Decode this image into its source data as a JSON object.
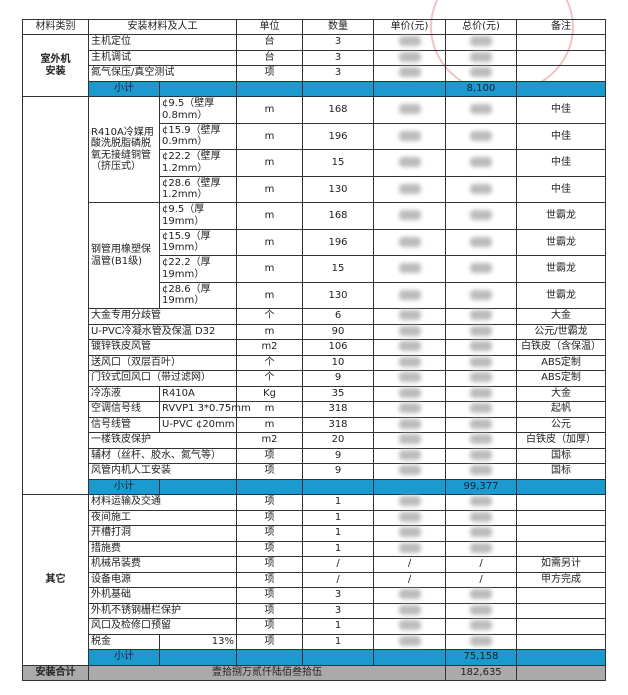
{
  "header": {
    "category": "材料类别",
    "item": "安装材料及人工",
    "unit": "单位",
    "qty": "数量",
    "unit_price": "单价(元)",
    "total": "总价(元)",
    "note": "备注"
  },
  "sections": [
    {
      "category": "室外机\n安装",
      "rows": [
        {
          "name": "主机定位",
          "unit": "台",
          "qty": "3",
          "note": ""
        },
        {
          "name": "主机调试",
          "unit": "台",
          "qty": "3",
          "note": ""
        },
        {
          "name": "氮气保压/真空测试",
          "unit": "项",
          "qty": "3",
          "note": ""
        }
      ],
      "subtotal_label": "小计",
      "subtotal": "8,100"
    },
    {
      "category": "",
      "rows": [
        {
          "group": "R410A冷媒用酸洗脱脂磷脱氧无接缝铜管（挤压式）",
          "group_size": 4,
          "spec": "¢9.5（壁厚0.8mm）",
          "unit": "m",
          "qty": "168",
          "note": "中佳",
          "tall": true
        },
        {
          "spec": "¢15.9（壁厚0.9mm）",
          "unit": "m",
          "qty": "196",
          "note": "中佳",
          "tall": true
        },
        {
          "spec": "¢22.2（壁厚1.2mm）",
          "unit": "m",
          "qty": "15",
          "note": "中佳",
          "tall": true
        },
        {
          "spec": "¢28.6（壁厚1.2mm）",
          "unit": "m",
          "qty": "130",
          "note": "中佳",
          "tall": true
        },
        {
          "group": "钢管用橡塑保温管(B1级)",
          "group_size": 4,
          "spec": "¢9.5（厚19mm）",
          "unit": "m",
          "qty": "168",
          "note": "世霸龙",
          "tall": true
        },
        {
          "spec": "¢15.9（厚19mm）",
          "unit": "m",
          "qty": "196",
          "note": "世霸龙",
          "tall": true
        },
        {
          "spec": "¢22.2（厚19mm）",
          "unit": "m",
          "qty": "15",
          "note": "世霸龙",
          "tall": true
        },
        {
          "spec": "¢28.6（厚19mm）",
          "unit": "m",
          "qty": "130",
          "note": "世霸龙",
          "tall": true
        },
        {
          "name": "大金专用分歧管",
          "unit": "个",
          "qty": "6",
          "note": "大金"
        },
        {
          "name": "U-PVC冷凝水管及保温  D32",
          "unit": "m",
          "qty": "90",
          "note": "公元/世霸龙"
        },
        {
          "name": "镀锌铁皮风管",
          "unit": "m2",
          "qty": "106",
          "note": "白铁皮（含保温）"
        },
        {
          "name": "送风口（双层百叶）",
          "unit": "个",
          "qty": "10",
          "note": "ABS定制"
        },
        {
          "name": "门铰式回风口（带过滤网）",
          "unit": "个",
          "qty": "9",
          "note": "ABS定制"
        },
        {
          "name2": "冷冻液",
          "spec": "R410A",
          "unit": "Kg",
          "qty": "35",
          "note": "大金"
        },
        {
          "name2": "空调信号线",
          "spec": "RVVP1 3*0.75mm",
          "unit": "m",
          "qty": "318",
          "note": "起帆"
        },
        {
          "name2": "信号线管",
          "spec": "U-PVC ¢20mm",
          "unit": "m",
          "qty": "318",
          "note": "公元"
        },
        {
          "name": "一楼铁皮保护",
          "unit": "m2",
          "qty": "20",
          "note": "白铁皮（加厚）"
        },
        {
          "name": "辅材（丝杆、胶水、氮气等）",
          "unit": "项",
          "qty": "9",
          "note": "国标"
        },
        {
          "name": "风管内机人工安装",
          "unit": "项",
          "qty": "9",
          "note": "国标"
        }
      ],
      "subtotal_label": "小计",
      "subtotal": "99,377"
    },
    {
      "category": "其它",
      "rows": [
        {
          "name": "材料运输及交通",
          "unit": "项",
          "qty": "1",
          "note": ""
        },
        {
          "name": "夜间施工",
          "unit": "项",
          "qty": "1",
          "note": ""
        },
        {
          "name": "开槽打洞",
          "unit": "项",
          "qty": "1",
          "note": ""
        },
        {
          "name": "措施费",
          "unit": "项",
          "qty": "1",
          "note": ""
        },
        {
          "name": "机械吊装费",
          "unit": "项",
          "qty": "/",
          "price": "/",
          "total": "/",
          "note": "如需另计"
        },
        {
          "name": "设备电源",
          "unit": "项",
          "qty": "/",
          "price": "/",
          "total": "/",
          "note": "甲方完成"
        },
        {
          "name": "外机基础",
          "unit": "项",
          "qty": "3",
          "note": ""
        },
        {
          "name": "外机不锈钢栅栏保护",
          "unit": "项",
          "qty": "3",
          "note": ""
        },
        {
          "name": "风口及检修口预留",
          "unit": "项",
          "qty": "1",
          "note": ""
        },
        {
          "name2": "税金",
          "spec_right": "13%",
          "unit": "项",
          "qty": "1",
          "note": ""
        }
      ],
      "subtotal_label": "小计",
      "subtotal": "75,158"
    }
  ],
  "grand_total": {
    "label": "安装合计",
    "words": "壹拾捌万贰仟陆佰叁拾伍",
    "value": "182,635"
  },
  "colors": {
    "subtotal_row": "#1b9ad0",
    "total_row": "#aaaaaa",
    "stamp": "#dc505a"
  }
}
